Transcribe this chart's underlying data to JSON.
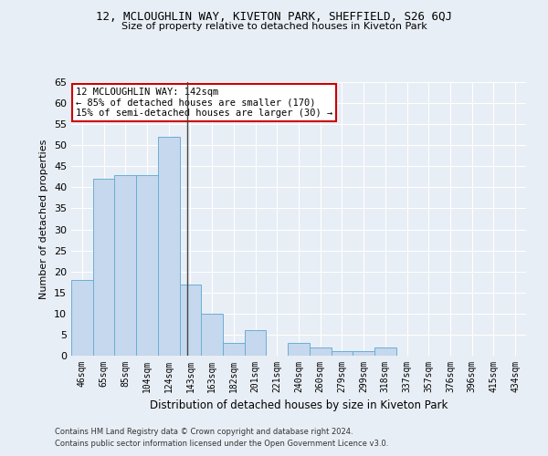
{
  "title1": "12, MCLOUGHLIN WAY, KIVETON PARK, SHEFFIELD, S26 6QJ",
  "title2": "Size of property relative to detached houses in Kiveton Park",
  "xlabel": "Distribution of detached houses by size in Kiveton Park",
  "ylabel": "Number of detached properties",
  "footer1": "Contains HM Land Registry data © Crown copyright and database right 2024.",
  "footer2": "Contains public sector information licensed under the Open Government Licence v3.0.",
  "categories": [
    "46sqm",
    "65sqm",
    "85sqm",
    "104sqm",
    "124sqm",
    "143sqm",
    "163sqm",
    "182sqm",
    "201sqm",
    "221sqm",
    "240sqm",
    "260sqm",
    "279sqm",
    "299sqm",
    "318sqm",
    "337sqm",
    "357sqm",
    "376sqm",
    "396sqm",
    "415sqm",
    "434sqm"
  ],
  "values": [
    18,
    42,
    43,
    43,
    52,
    17,
    10,
    3,
    6,
    0,
    3,
    2,
    1,
    1,
    2,
    0,
    0,
    0,
    0,
    0,
    0
  ],
  "bar_color": "#c5d8ed",
  "bar_edge_color": "#6aaed6",
  "property_line_index": 4.84,
  "annotation_title": "12 MCLOUGHLIN WAY: 142sqm",
  "annotation_line1": "← 85% of detached houses are smaller (170)",
  "annotation_line2": "15% of semi-detached houses are larger (30) →",
  "annotation_box_color": "#ffffff",
  "annotation_box_edge": "#cc0000",
  "bg_color": "#e8eef5",
  "grid_color": "#ffffff",
  "ylim": [
    0,
    65
  ],
  "yticks": [
    0,
    5,
    10,
    15,
    20,
    25,
    30,
    35,
    40,
    45,
    50,
    55,
    60,
    65
  ]
}
